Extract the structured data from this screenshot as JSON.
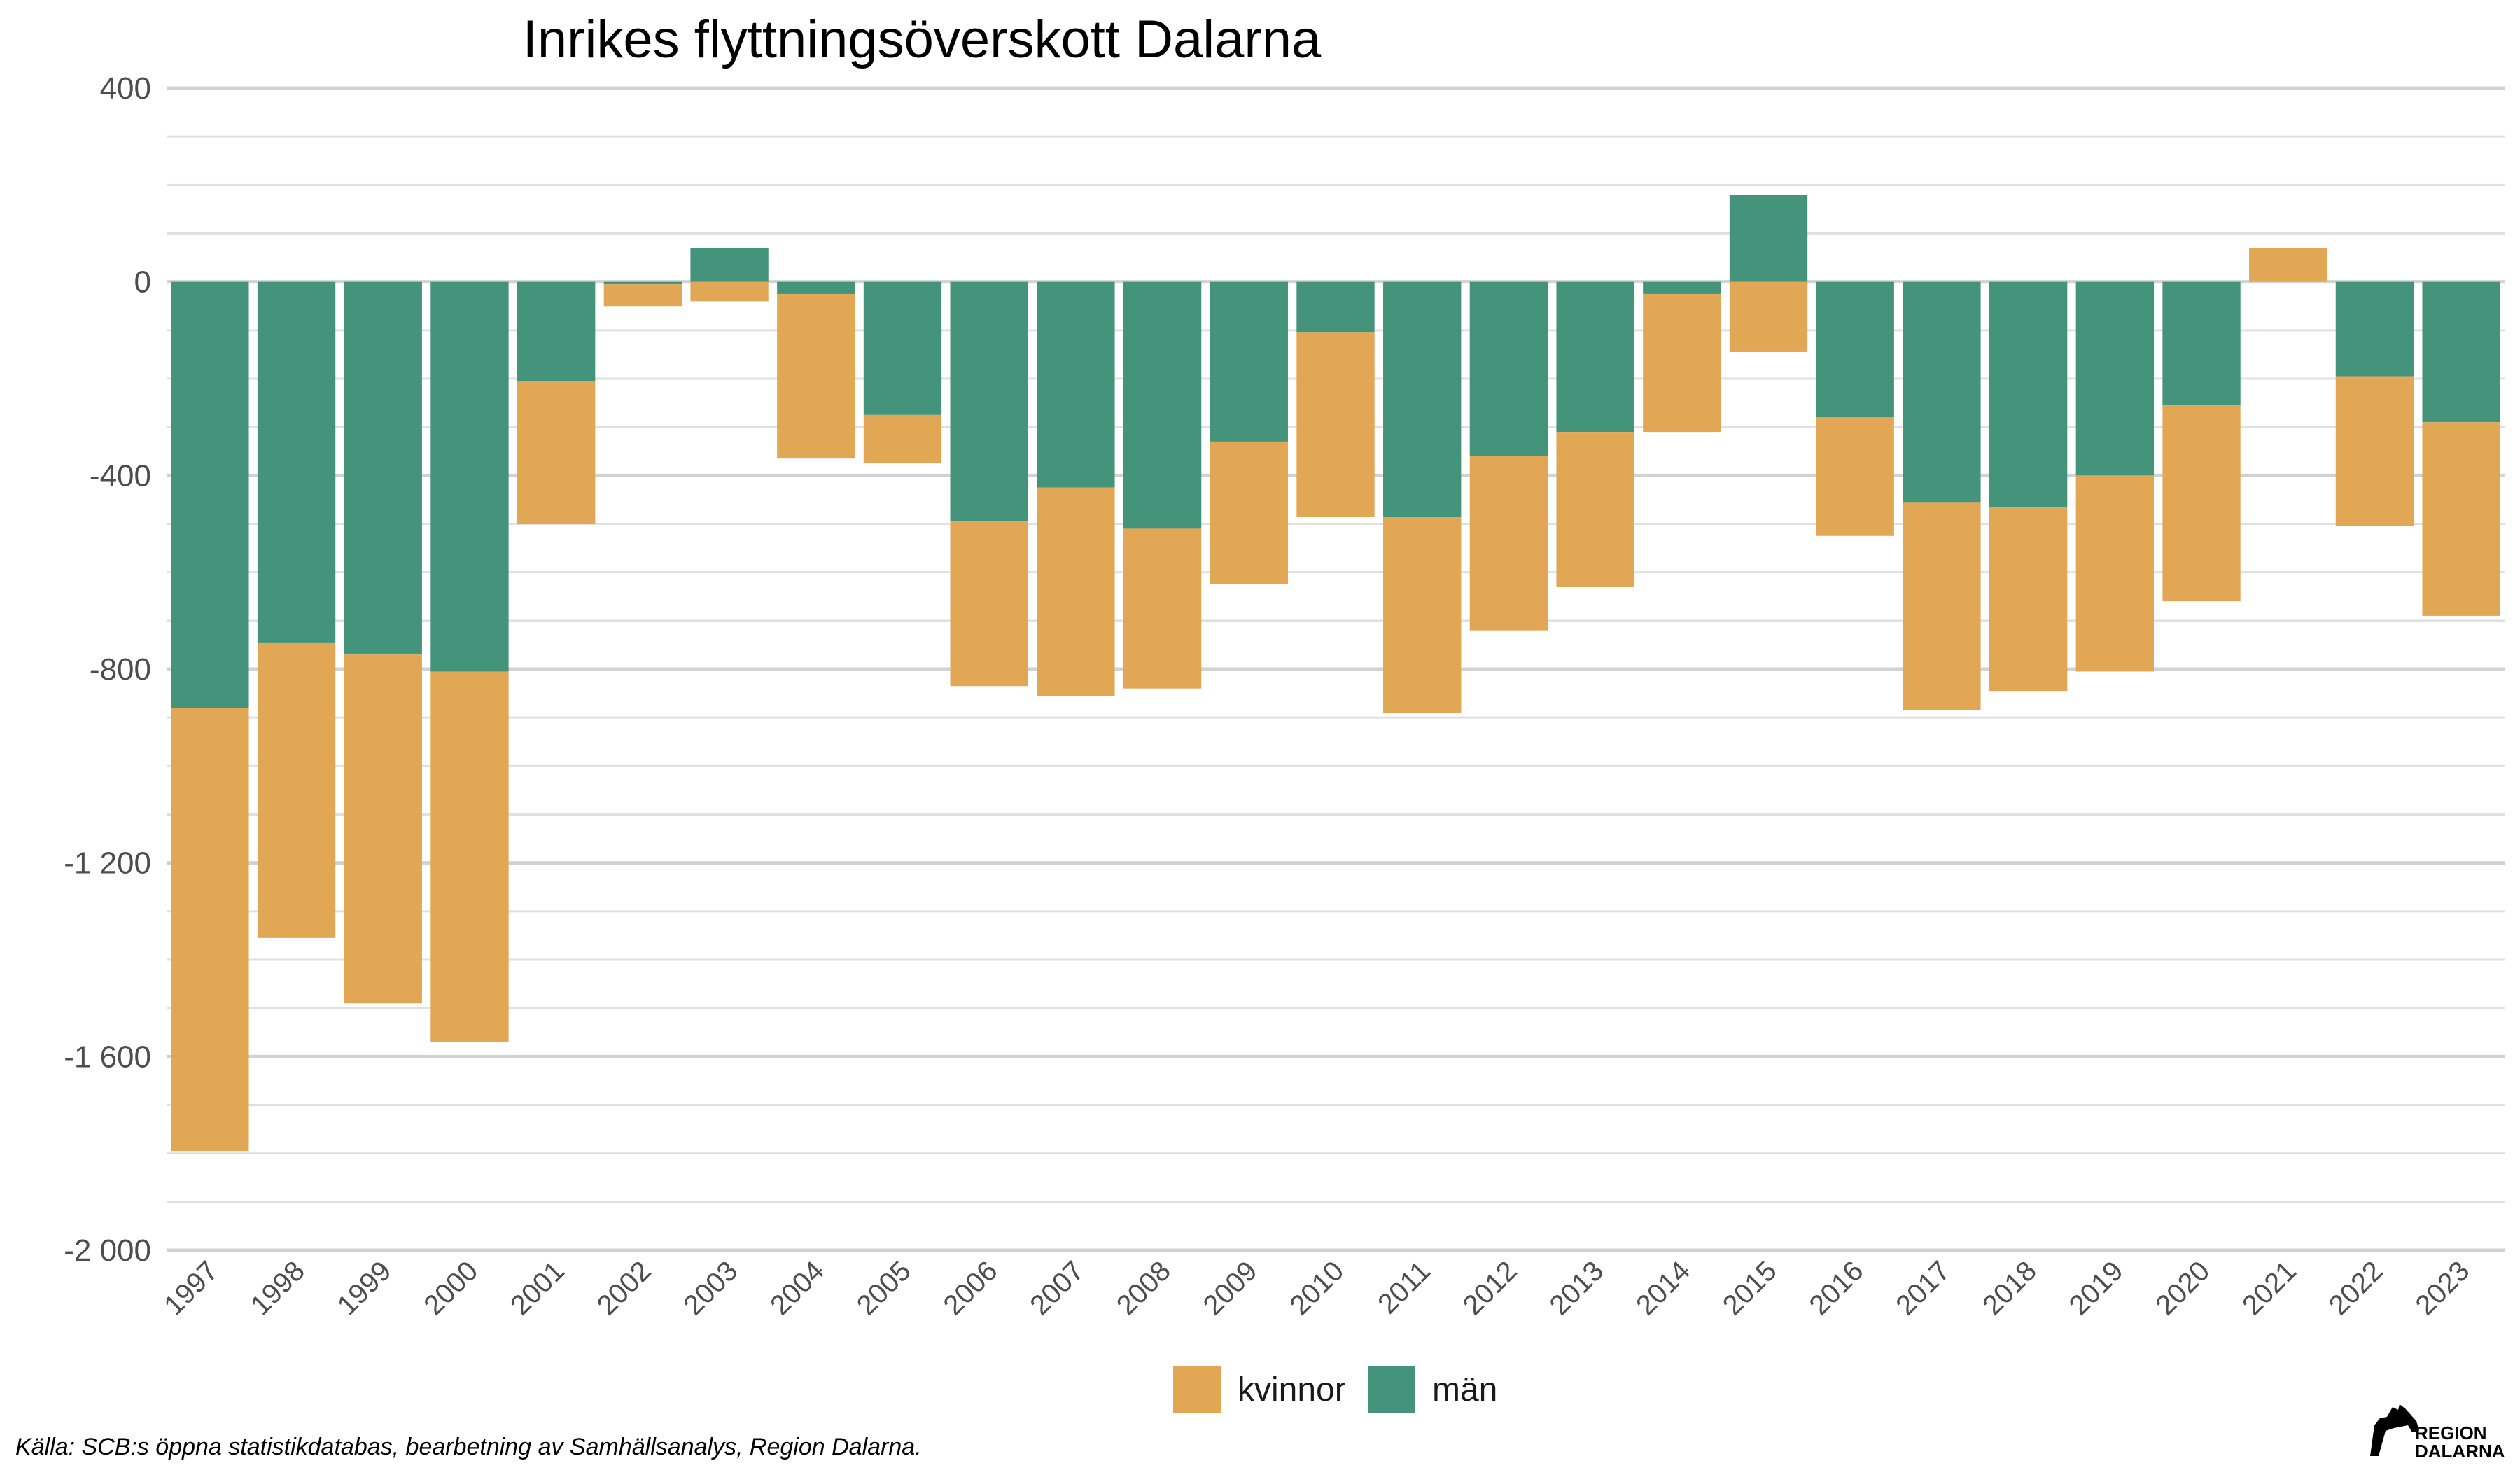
{
  "chart_data": {
    "type": "bar",
    "stacked": true,
    "title": "Inrikes flyttningsöverskott Dalarna",
    "xlabel": "",
    "ylabel": "",
    "ylim": [
      -2000,
      400
    ],
    "yticks": [
      400,
      0,
      -400,
      -800,
      -1200,
      -1600,
      -2000
    ],
    "ytick_labels": [
      "400",
      "0",
      "-400",
      "-800",
      "-1 200",
      "-1 600",
      "-2 000"
    ],
    "grid": true,
    "legend_position": "bottom",
    "categories": [
      "1997",
      "1998",
      "1999",
      "2000",
      "2001",
      "2002",
      "2003",
      "2004",
      "2005",
      "2006",
      "2007",
      "2008",
      "2009",
      "2010",
      "2011",
      "2012",
      "2013",
      "2014",
      "2015",
      "2016",
      "2017",
      "2018",
      "2019",
      "2020",
      "2021",
      "2022",
      "2023"
    ],
    "series": [
      {
        "name": "män",
        "color": "#44937b",
        "values": [
          -880,
          -745,
          -770,
          -805,
          -205,
          -5,
          70,
          -25,
          -275,
          -495,
          -425,
          -510,
          -330,
          -105,
          -485,
          -360,
          -310,
          -25,
          180,
          -280,
          -455,
          -465,
          -400,
          -255,
          0,
          -195,
          -290
        ]
      },
      {
        "name": "kvinnor",
        "color": "#e2a755",
        "values": [
          -915,
          -610,
          -720,
          -765,
          -295,
          -45,
          -40,
          -340,
          -100,
          -340,
          -430,
          -330,
          -295,
          -380,
          -405,
          -360,
          -320,
          -285,
          -145,
          -245,
          -430,
          -380,
          -405,
          -405,
          70,
          -310,
          -400
        ]
      }
    ],
    "legend": [
      {
        "label": "kvinnor",
        "color": "#e2a755"
      },
      {
        "label": "män",
        "color": "#44937b"
      }
    ]
  },
  "caption": "Källa: SCB:s öppna statistikdatabas, bearbetning av Samhällsanalys, Region Dalarna.",
  "logo": {
    "line1": "REGION",
    "line2": "DALARNA"
  }
}
